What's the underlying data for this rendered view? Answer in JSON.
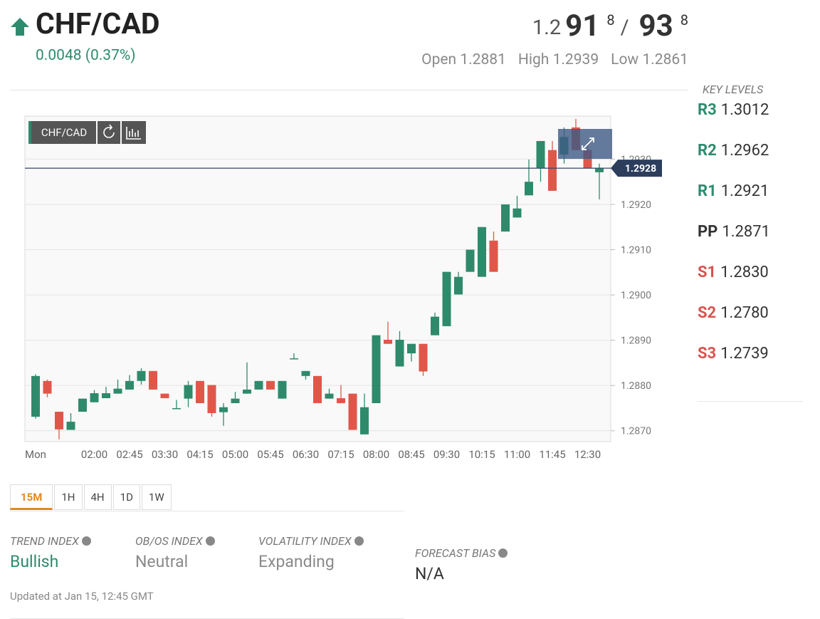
{
  "header": {
    "pair": "CHF/CAD",
    "change": "0.0048 (0.37%)",
    "price": {
      "prefix": "1.2",
      "bid_big": "91",
      "bid_pip": "8",
      "separator": "/",
      "ask_big": "93",
      "ask_pip": "8"
    },
    "stats": [
      {
        "label": "Open",
        "value": "1.2881"
      },
      {
        "label": "High",
        "value": "1.2939"
      },
      {
        "label": "Low",
        "value": "1.2861"
      }
    ]
  },
  "key_levels": {
    "title": "KEY LEVELS",
    "levels": [
      {
        "name": "R3",
        "value": "1.3012"
      },
      {
        "name": "R2",
        "value": "1.2962"
      },
      {
        "name": "R1",
        "value": "1.2921"
      },
      {
        "name": "PP",
        "value": "1.2871"
      },
      {
        "name": "S1",
        "value": "1.2830"
      },
      {
        "name": "S2",
        "value": "1.2780"
      },
      {
        "name": "S3",
        "value": "1.2739"
      }
    ]
  },
  "chart_data": {
    "type": "candlestick",
    "symbol": "CHF/CAD",
    "categories": [
      "Mon",
      null,
      null,
      null,
      null,
      "02:00",
      null,
      null,
      "02:45",
      null,
      null,
      "03:30",
      null,
      null,
      "04:15",
      null,
      null,
      "05:00",
      null,
      null,
      "05:45",
      null,
      null,
      "06:30",
      null,
      null,
      "07:15",
      null,
      null,
      "08:00",
      null,
      null,
      "08:45",
      null,
      null,
      "09:30",
      null,
      null,
      "10:15",
      null,
      null,
      "11:00",
      null,
      null,
      "11:45",
      null,
      null,
      "12:30",
      null
    ],
    "open": [
      1.28731,
      1.2881,
      1.28742,
      1.28702,
      1.28742,
      1.28763,
      1.28772,
      1.28782,
      1.28791,
      1.2881,
      1.28832,
      1.28782,
      1.2875,
      1.28771,
      1.2881,
      1.28801,
      1.28741,
      1.28761,
      1.28782,
      1.28791,
      1.2881,
      1.28771,
      1.2886,
      1.28821,
      1.28821,
      1.28771,
      1.28772,
      1.28782,
      1.28692,
      1.28761,
      1.28901,
      1.28842,
      1.28871,
      1.28892,
      1.28911,
      1.28931,
      1.29001,
      1.29051,
      1.2904,
      1.2912,
      1.2914,
      1.29171,
      1.2922,
      1.2928,
      1.2932,
      1.2931,
      1.2937,
      1.2932,
      1.29271
    ],
    "high": [
      1.28825,
      1.28813,
      1.28742,
      1.28739,
      1.28771,
      1.2879,
      1.28797,
      1.28813,
      1.28823,
      1.28838,
      1.28832,
      1.28782,
      1.28768,
      1.2881,
      1.2881,
      1.28801,
      1.28761,
      1.28786,
      1.28851,
      1.2881,
      1.2881,
      1.2881,
      1.28871,
      1.28832,
      1.28821,
      1.28793,
      1.28801,
      1.28782,
      1.28782,
      1.28911,
      1.28941,
      1.2892,
      1.28892,
      1.28892,
      1.28961,
      1.29051,
      1.29051,
      1.291,
      1.2915,
      1.2914,
      1.292,
      1.29219,
      1.29299,
      1.2934,
      1.2934,
      1.2937,
      1.29389,
      1.29337,
      1.2929
    ],
    "low": [
      1.28727,
      1.28774,
      1.28681,
      1.28702,
      1.28742,
      1.28763,
      1.28772,
      1.28782,
      1.28791,
      1.28802,
      1.28791,
      1.28772,
      1.2875,
      1.28752,
      1.28761,
      1.28731,
      1.28711,
      1.28761,
      1.28782,
      1.28791,
      1.28791,
      1.28771,
      1.2886,
      1.28813,
      1.28761,
      1.28771,
      1.28761,
      1.28702,
      1.28692,
      1.28761,
      1.28892,
      1.28842,
      1.28853,
      1.28821,
      1.28911,
      1.28931,
      1.29001,
      1.29051,
      1.2904,
      1.29051,
      1.2914,
      1.29171,
      1.2922,
      1.2925,
      1.2923,
      1.2929,
      1.2932,
      1.2928,
      1.29211
    ],
    "close": [
      1.28821,
      1.28782,
      1.28703,
      1.2872,
      1.28771,
      1.28783,
      1.28783,
      1.28793,
      1.2881,
      1.28832,
      1.28791,
      1.28772,
      1.2875,
      1.28801,
      1.28761,
      1.28739,
      1.28752,
      1.28771,
      1.28791,
      1.2881,
      1.28791,
      1.2881,
      1.2886,
      1.28832,
      1.28761,
      1.28782,
      1.28761,
      1.28702,
      1.28752,
      1.28911,
      1.28892,
      1.28901,
      1.28892,
      1.28831,
      1.28952,
      1.29051,
      1.2904,
      1.291,
      1.2915,
      1.29051,
      1.292,
      1.29191,
      1.2925,
      1.2934,
      1.2923,
      1.29349,
      1.2932,
      1.2928,
      1.2928
    ],
    "up_color": "#2f8a6c",
    "down_color": "#e0574a",
    "ylim": [
      1.28676,
      1.29395
    ],
    "yticks": [
      {
        "value": 1.287,
        "label": "1.2870"
      },
      {
        "value": 1.288,
        "label": "1.2880"
      },
      {
        "value": 1.289,
        "label": "1.2890"
      },
      {
        "value": 1.29,
        "label": "1.2900"
      },
      {
        "value": 1.291,
        "label": "1.2910"
      },
      {
        "value": 1.292,
        "label": "1.2920"
      },
      {
        "value": 1.293,
        "label": "1.2930"
      }
    ],
    "grid": true,
    "current_price": 1.2928
  },
  "timeframes": [
    "15M",
    "1H",
    "4H",
    "1D",
    "1W"
  ],
  "indexes": [
    {
      "label": "TREND INDEX",
      "value": "Bullish"
    },
    {
      "label": "OB/OS INDEX",
      "value": "Neutral"
    },
    {
      "label": "VOLATILITY INDEX",
      "value": "Expanding"
    }
  ],
  "forecast": {
    "label": "FORECAST BIAS",
    "value": "N/A"
  },
  "updated": "Updated at Jan 15, 12:45 GMT"
}
